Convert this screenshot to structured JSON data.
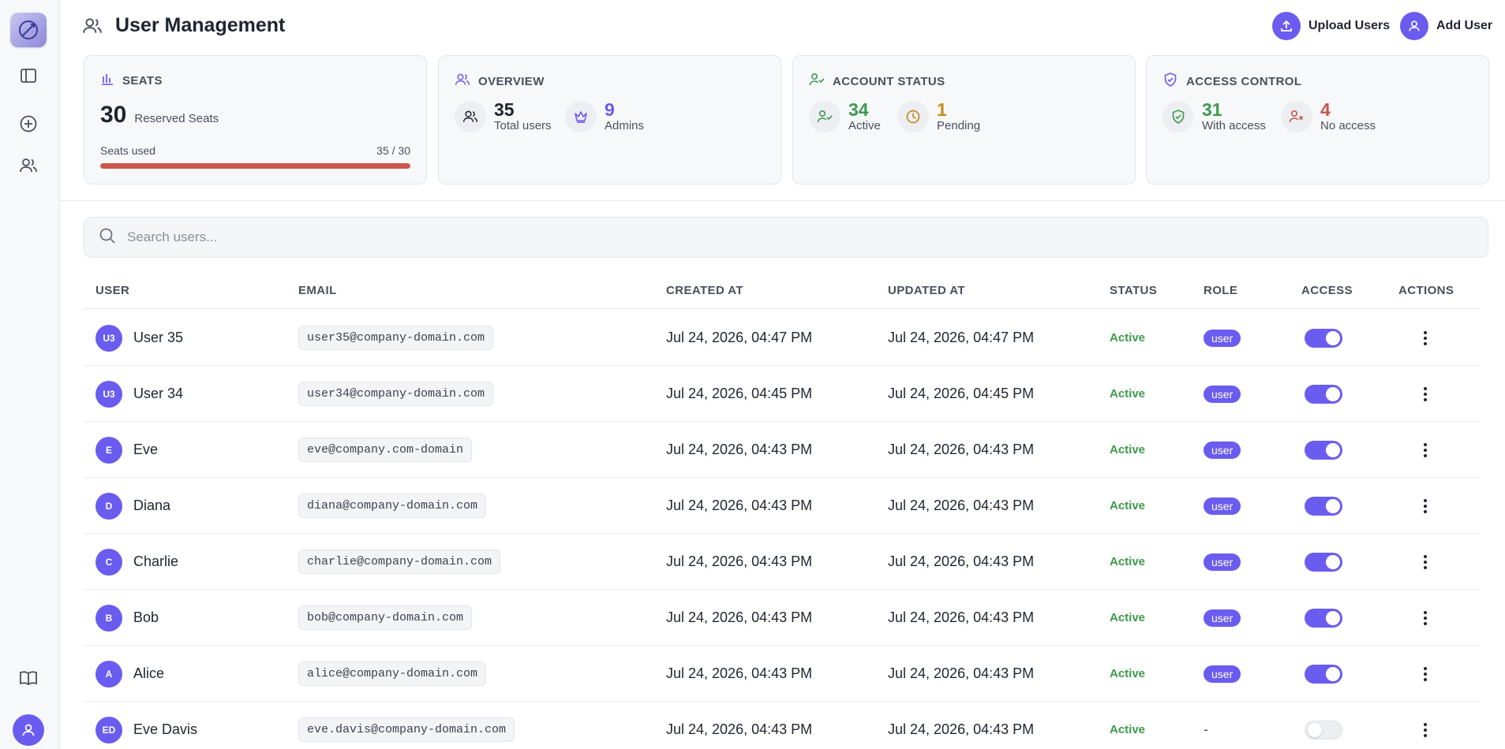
{
  "header": {
    "title": "User Management",
    "upload_label": "Upload Users",
    "add_label": "Add User"
  },
  "cards": {
    "seats": {
      "title": "SEATS",
      "reserved_value": "30",
      "reserved_label": "Reserved Seats",
      "used_label": "Seats used",
      "used_value": "35 / 30",
      "used_fraction": 1.0
    },
    "overview": {
      "title": "OVERVIEW",
      "total_value": "35",
      "total_label": "Total users",
      "admins_value": "9",
      "admins_label": "Admins"
    },
    "account_status": {
      "title": "ACCOUNT STATUS",
      "active_value": "34",
      "active_label": "Active",
      "pending_value": "1",
      "pending_label": "Pending"
    },
    "access_control": {
      "title": "ACCESS CONTROL",
      "with_value": "31",
      "with_label": "With access",
      "no_value": "4",
      "no_label": "No access"
    }
  },
  "colors": {
    "accent": "#6b5cf0",
    "active_green": "#3d9a4c",
    "pending_amber": "#c98a1a",
    "danger_red": "#c9564c"
  },
  "search": {
    "placeholder": "Search users..."
  },
  "table": {
    "columns": [
      "USER",
      "EMAIL",
      "CREATED AT",
      "UPDATED AT",
      "STATUS",
      "ROLE",
      "ACCESS",
      "ACTIONS"
    ],
    "rows": [
      {
        "initials": "U3",
        "name": "User 35",
        "email": "user35@company-domain.com",
        "created": "Jul 24, 2026, 04:47 PM",
        "updated": "Jul 24, 2026, 04:47 PM",
        "status": "Active",
        "role": "user",
        "access": true
      },
      {
        "initials": "U3",
        "name": "User 34",
        "email": "user34@company-domain.com",
        "created": "Jul 24, 2026, 04:45 PM",
        "updated": "Jul 24, 2026, 04:45 PM",
        "status": "Active",
        "role": "user",
        "access": true
      },
      {
        "initials": "E",
        "name": "Eve",
        "email": "eve@company.com-domain",
        "created": "Jul 24, 2026, 04:43 PM",
        "updated": "Jul 24, 2026, 04:43 PM",
        "status": "Active",
        "role": "user",
        "access": true
      },
      {
        "initials": "D",
        "name": "Diana",
        "email": "diana@company-domain.com",
        "created": "Jul 24, 2026, 04:43 PM",
        "updated": "Jul 24, 2026, 04:43 PM",
        "status": "Active",
        "role": "user",
        "access": true
      },
      {
        "initials": "C",
        "name": "Charlie",
        "email": "charlie@company-domain.com",
        "created": "Jul 24, 2026, 04:43 PM",
        "updated": "Jul 24, 2026, 04:43 PM",
        "status": "Active",
        "role": "user",
        "access": true
      },
      {
        "initials": "B",
        "name": "Bob",
        "email": "bob@company-domain.com",
        "created": "Jul 24, 2026, 04:43 PM",
        "updated": "Jul 24, 2026, 04:43 PM",
        "status": "Active",
        "role": "user",
        "access": true
      },
      {
        "initials": "A",
        "name": "Alice",
        "email": "alice@company-domain.com",
        "created": "Jul 24, 2026, 04:43 PM",
        "updated": "Jul 24, 2026, 04:43 PM",
        "status": "Active",
        "role": "user",
        "access": true
      },
      {
        "initials": "ED",
        "name": "Eve Davis",
        "email": "eve.davis@company-domain.com",
        "created": "Jul 24, 2026, 04:43 PM",
        "updated": "Jul 24, 2026, 04:43 PM",
        "status": "Active",
        "role": "-",
        "access": false
      }
    ]
  }
}
